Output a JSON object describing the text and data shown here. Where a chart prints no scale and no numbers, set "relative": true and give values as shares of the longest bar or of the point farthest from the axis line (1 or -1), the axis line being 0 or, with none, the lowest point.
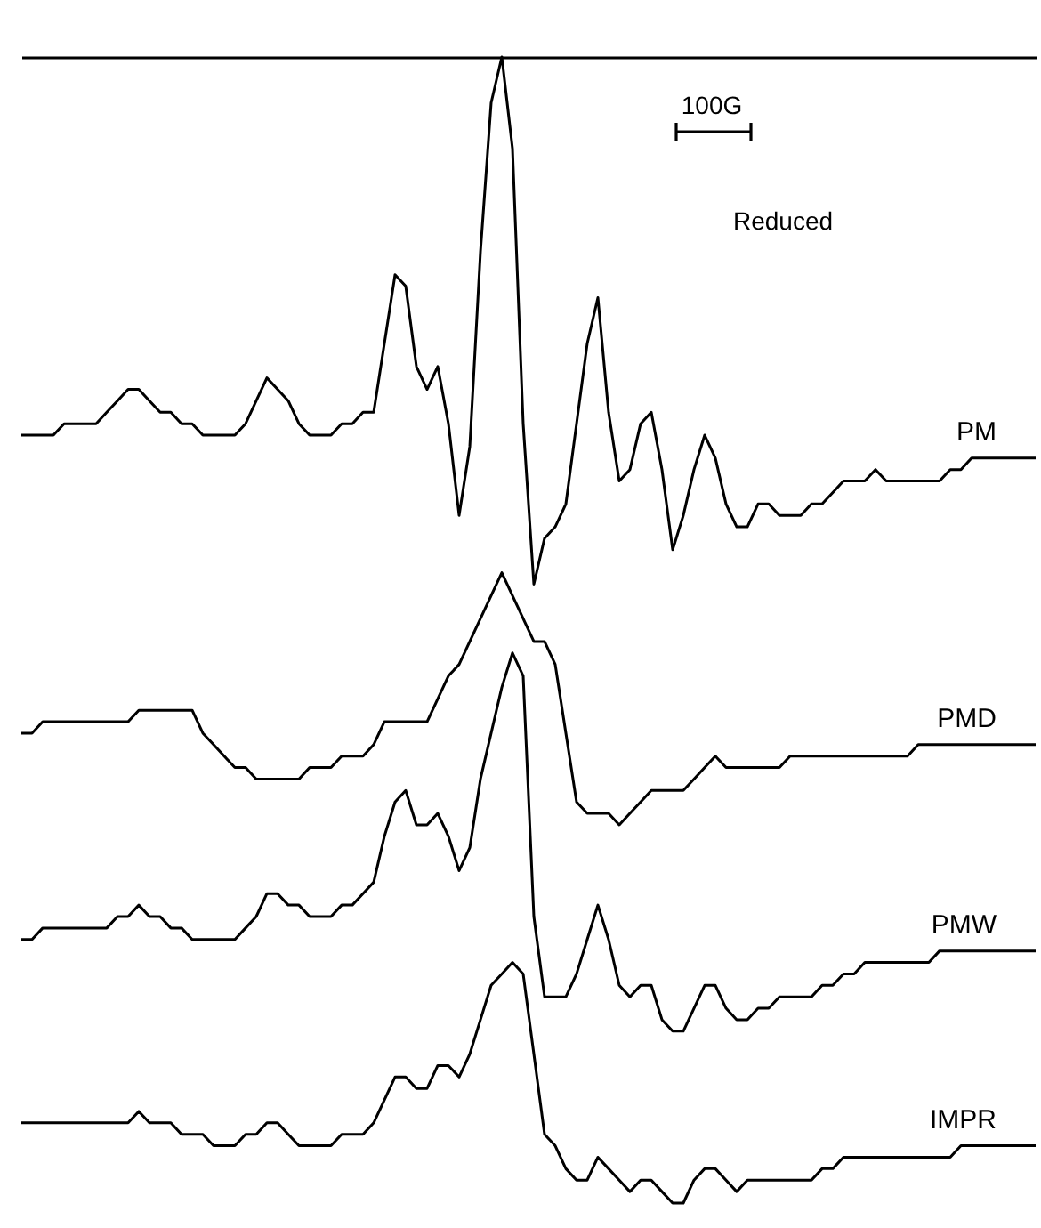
{
  "chart_data": {
    "type": "line",
    "relative": true,
    "legend": false,
    "annotations": [
      "100G",
      "Reduced"
    ],
    "categories": [
      null,
      null,
      null,
      null,
      null,
      null,
      null,
      null,
      null,
      null,
      null,
      null,
      null,
      null,
      null,
      null,
      null,
      null,
      null,
      null,
      null,
      null,
      null,
      null,
      null,
      null,
      null,
      null,
      null,
      null,
      null,
      null,
      null,
      null,
      null,
      null,
      null,
      null,
      null,
      null,
      null,
      null,
      null,
      null,
      null,
      null,
      null,
      null,
      null,
      null,
      null,
      null,
      null,
      null,
      null,
      null,
      null,
      null,
      null,
      null,
      null,
      null,
      null,
      null,
      null,
      null,
      null,
      null,
      null,
      null,
      null,
      null,
      null,
      null,
      null,
      null,
      null,
      null,
      null,
      null,
      null,
      null,
      null,
      null,
      null,
      null,
      null,
      null,
      null,
      null,
      null,
      null,
      null,
      null,
      null,
      null
    ],
    "series": [
      {
        "name": "PM",
        "color": "#000000",
        "values": [
          0.67,
          0.67,
          0.67,
          0.67,
          0.68,
          0.68,
          0.68,
          0.68,
          0.69,
          0.7,
          0.71,
          0.71,
          0.7,
          0.69,
          0.69,
          0.68,
          0.68,
          0.67,
          0.67,
          0.67,
          0.67,
          0.68,
          0.7,
          0.72,
          0.71,
          0.7,
          0.68,
          0.67,
          0.67,
          0.67,
          0.68,
          0.68,
          0.69,
          0.69,
          0.75,
          0.81,
          0.8,
          0.73,
          0.71,
          0.73,
          0.68,
          0.6,
          0.66,
          0.83,
          0.96,
          1,
          0.92,
          0.68,
          0.54,
          0.58,
          0.59,
          0.61,
          0.68,
          0.75,
          0.79,
          0.69,
          0.63,
          0.64,
          0.68,
          0.69,
          0.64,
          0.57,
          0.6,
          0.64,
          0.67,
          0.65,
          0.61,
          0.59,
          0.59,
          0.61,
          0.61,
          0.6,
          0.6,
          0.6,
          0.61,
          0.61,
          0.62,
          0.63,
          0.63,
          0.63,
          0.64,
          0.63,
          0.63,
          0.63,
          0.63,
          0.63,
          0.63,
          0.64,
          0.64,
          0.65,
          0.65,
          0.65,
          0.65,
          0.65,
          0.65,
          0.65
        ]
      },
      {
        "name": "PMD",
        "color": "#000000",
        "values": [
          0.41,
          0.41,
          0.42,
          0.42,
          0.42,
          0.42,
          0.42,
          0.42,
          0.42,
          0.42,
          0.42,
          0.43,
          0.43,
          0.43,
          0.43,
          0.43,
          0.43,
          0.41,
          0.4,
          0.39,
          0.38,
          0.38,
          0.37,
          0.37,
          0.37,
          0.37,
          0.37,
          0.38,
          0.38,
          0.38,
          0.39,
          0.39,
          0.39,
          0.4,
          0.42,
          0.42,
          0.42,
          0.42,
          0.42,
          0.44,
          0.46,
          0.47,
          0.49,
          0.51,
          0.53,
          0.55,
          0.53,
          0.51,
          0.49,
          0.49,
          0.47,
          0.41,
          0.35,
          0.34,
          0.34,
          0.34,
          0.33,
          0.34,
          0.35,
          0.36,
          0.36,
          0.36,
          0.36,
          0.37,
          0.38,
          0.39,
          0.38,
          0.38,
          0.38,
          0.38,
          0.38,
          0.38,
          0.39,
          0.39,
          0.39,
          0.39,
          0.39,
          0.39,
          0.39,
          0.39,
          0.39,
          0.39,
          0.39,
          0.39,
          0.4,
          0.4,
          0.4,
          0.4,
          0.4,
          0.4,
          0.4,
          0.4,
          0.4,
          0.4,
          0.4,
          0.4
        ]
      },
      {
        "name": "PMW",
        "color": "#000000",
        "values": [
          0.23,
          0.23,
          0.24,
          0.24,
          0.24,
          0.24,
          0.24,
          0.24,
          0.24,
          0.25,
          0.25,
          0.26,
          0.25,
          0.25,
          0.24,
          0.24,
          0.23,
          0.23,
          0.23,
          0.23,
          0.23,
          0.24,
          0.25,
          0.27,
          0.27,
          0.26,
          0.26,
          0.25,
          0.25,
          0.25,
          0.26,
          0.26,
          0.27,
          0.28,
          0.32,
          0.35,
          0.36,
          0.33,
          0.33,
          0.34,
          0.32,
          0.29,
          0.31,
          0.37,
          0.41,
          0.45,
          0.48,
          0.46,
          0.25,
          0.18,
          0.18,
          0.18,
          0.2,
          0.23,
          0.26,
          0.23,
          0.19,
          0.18,
          0.19,
          0.19,
          0.16,
          0.15,
          0.15,
          0.17,
          0.19,
          0.19,
          0.17,
          0.16,
          0.16,
          0.17,
          0.17,
          0.18,
          0.18,
          0.18,
          0.18,
          0.19,
          0.19,
          0.2,
          0.2,
          0.21,
          0.21,
          0.21,
          0.21,
          0.21,
          0.21,
          0.21,
          0.22,
          0.22,
          0.22,
          0.22,
          0.22,
          0.22,
          0.22,
          0.22,
          0.22,
          0.22
        ]
      },
      {
        "name": "IMPR",
        "color": "#000000",
        "values": [
          0.07,
          0.07,
          0.07,
          0.07,
          0.07,
          0.07,
          0.07,
          0.07,
          0.07,
          0.07,
          0.07,
          0.08,
          0.07,
          0.07,
          0.07,
          0.06,
          0.06,
          0.06,
          0.05,
          0.05,
          0.05,
          0.06,
          0.06,
          0.07,
          0.07,
          0.06,
          0.05,
          0.05,
          0.05,
          0.05,
          0.06,
          0.06,
          0.06,
          0.07,
          0.09,
          0.11,
          0.11,
          0.1,
          0.1,
          0.12,
          0.12,
          0.11,
          0.13,
          0.16,
          0.19,
          0.2,
          0.21,
          0.2,
          0.13,
          0.06,
          0.05,
          0.03,
          0.02,
          0.02,
          0.04,
          0.03,
          0.02,
          0.01,
          0.02,
          0.02,
          0.01,
          0,
          0.0,
          0.02,
          0.03,
          0.03,
          0.02,
          0.01,
          0.02,
          0.02,
          0.02,
          0.02,
          0.02,
          0.02,
          0.02,
          0.03,
          0.03,
          0.04,
          0.04,
          0.04,
          0.04,
          0.04,
          0.04,
          0.04,
          0.04,
          0.04,
          0.04,
          0.04,
          0.05,
          0.05,
          0.05,
          0.05,
          0.05,
          0.05,
          0.05,
          0.05
        ]
      }
    ]
  }
}
